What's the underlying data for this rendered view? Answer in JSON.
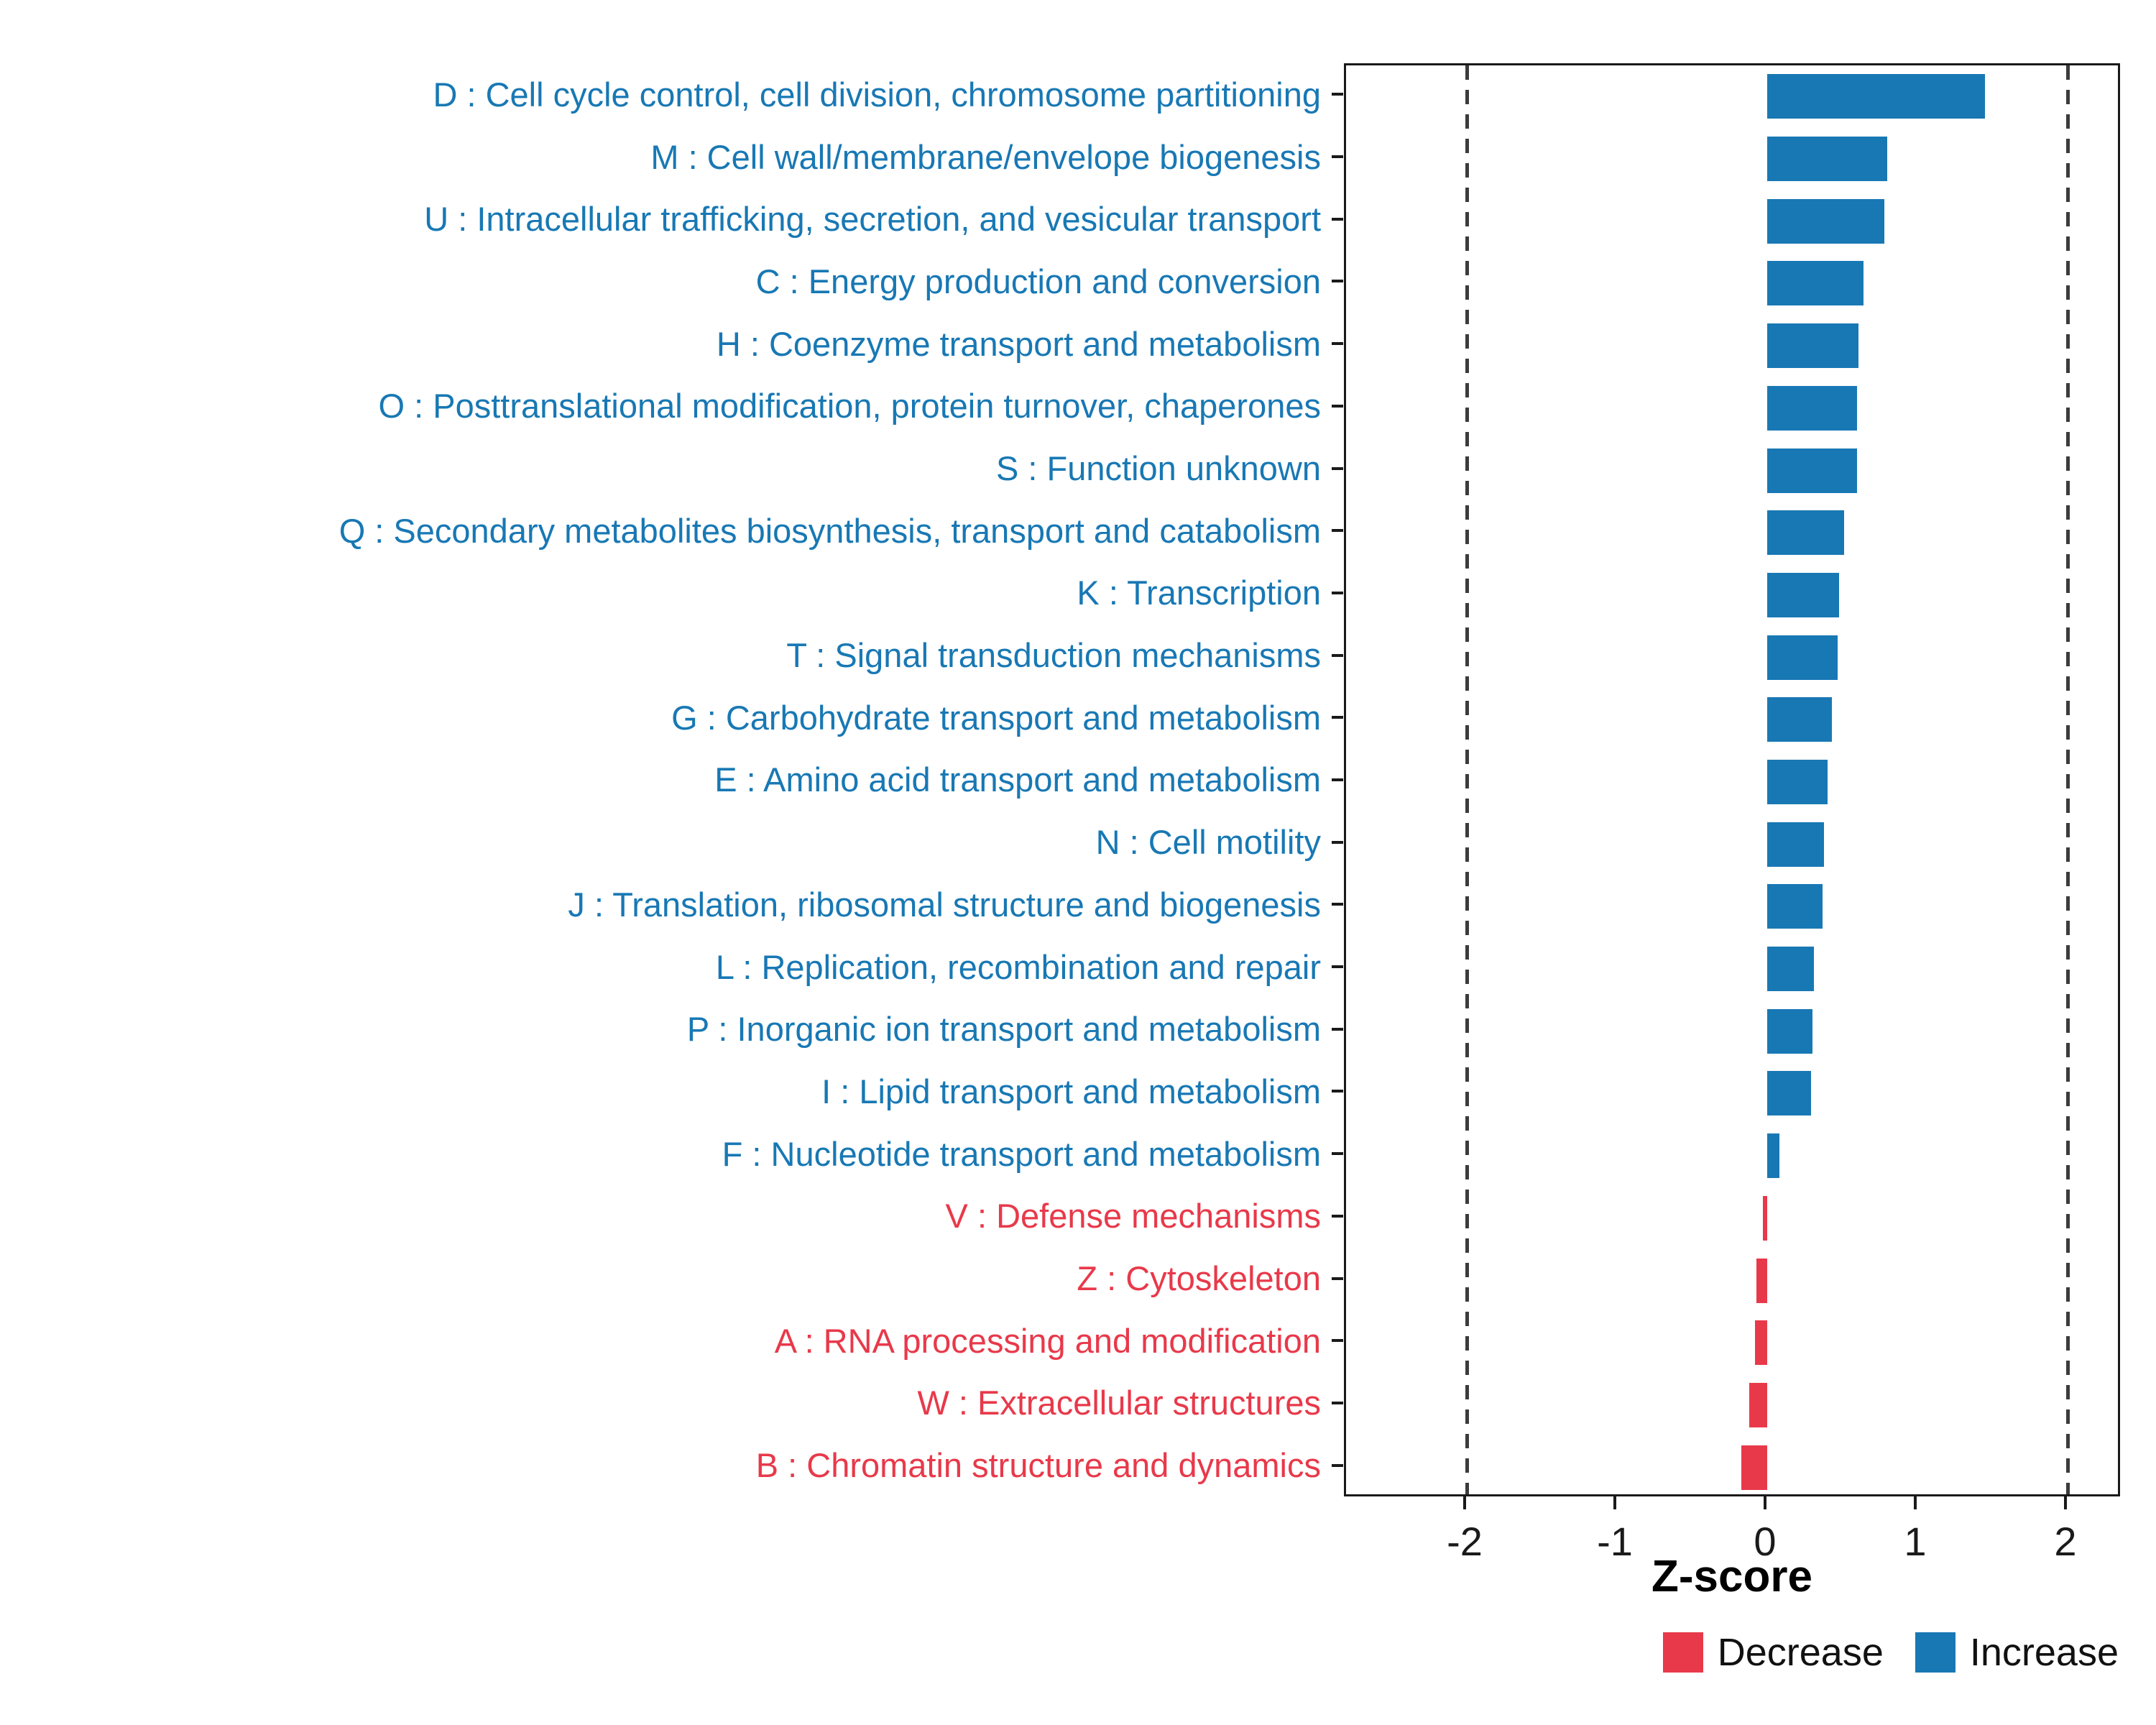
{
  "chart_data": {
    "type": "bar",
    "orientation": "horizontal",
    "title": "",
    "xlabel": "Z-score",
    "ylabel": "",
    "xlim": [
      -2.8,
      2.36
    ],
    "xticks": [
      -2,
      -1,
      0,
      1,
      2
    ],
    "xtick_labels": [
      "-2",
      "-1",
      "0",
      "1",
      "2"
    ],
    "dashed_lines": [
      -2,
      2
    ],
    "grid": false,
    "legend_position": "bottom-right",
    "colors": {
      "increase": "#1878B4",
      "decrease": "#E8394A"
    },
    "legend": [
      {
        "label": "Decrease",
        "group": "decrease"
      },
      {
        "label": "Increase",
        "group": "increase"
      }
    ],
    "categories": [
      {
        "label": "D : Cell cycle control, cell division, chromosome partitioning",
        "value": 1.45,
        "group": "increase"
      },
      {
        "label": "M : Cell wall/membrane/envelope biogenesis",
        "value": 0.8,
        "group": "increase"
      },
      {
        "label": "U : Intracellular trafficking, secretion, and vesicular transport",
        "value": 0.78,
        "group": "increase"
      },
      {
        "label": "C : Energy production and conversion",
        "value": 0.64,
        "group": "increase"
      },
      {
        "label": "H : Coenzyme transport and metabolism",
        "value": 0.61,
        "group": "increase"
      },
      {
        "label": "O : Posttranslational modification, protein turnover, chaperones",
        "value": 0.6,
        "group": "increase"
      },
      {
        "label": "S : Function unknown",
        "value": 0.6,
        "group": "increase"
      },
      {
        "label": "Q : Secondary metabolites biosynthesis, transport and catabolism",
        "value": 0.51,
        "group": "increase"
      },
      {
        "label": "K : Transcription",
        "value": 0.48,
        "group": "increase"
      },
      {
        "label": "T : Signal transduction mechanisms",
        "value": 0.47,
        "group": "increase"
      },
      {
        "label": "G : Carbohydrate transport and metabolism",
        "value": 0.43,
        "group": "increase"
      },
      {
        "label": "E : Amino acid transport and metabolism",
        "value": 0.4,
        "group": "increase"
      },
      {
        "label": "N : Cell motility",
        "value": 0.38,
        "group": "increase"
      },
      {
        "label": "J : Translation, ribosomal structure and biogenesis",
        "value": 0.37,
        "group": "increase"
      },
      {
        "label": "L : Replication, recombination and repair",
        "value": 0.31,
        "group": "increase"
      },
      {
        "label": "P : Inorganic ion transport and metabolism",
        "value": 0.3,
        "group": "increase"
      },
      {
        "label": "I : Lipid transport and metabolism",
        "value": 0.29,
        "group": "increase"
      },
      {
        "label": "F : Nucleotide transport and metabolism",
        "value": 0.08,
        "group": "increase"
      },
      {
        "label": "V : Defense mechanisms",
        "value": -0.03,
        "group": "decrease"
      },
      {
        "label": "Z : Cytoskeleton",
        "value": -0.07,
        "group": "decrease"
      },
      {
        "label": "A : RNA processing and modification",
        "value": -0.08,
        "group": "decrease"
      },
      {
        "label": "W : Extracellular structures",
        "value": -0.12,
        "group": "decrease"
      },
      {
        "label": "B : Chromatin structure and dynamics",
        "value": -0.17,
        "group": "decrease"
      }
    ]
  }
}
